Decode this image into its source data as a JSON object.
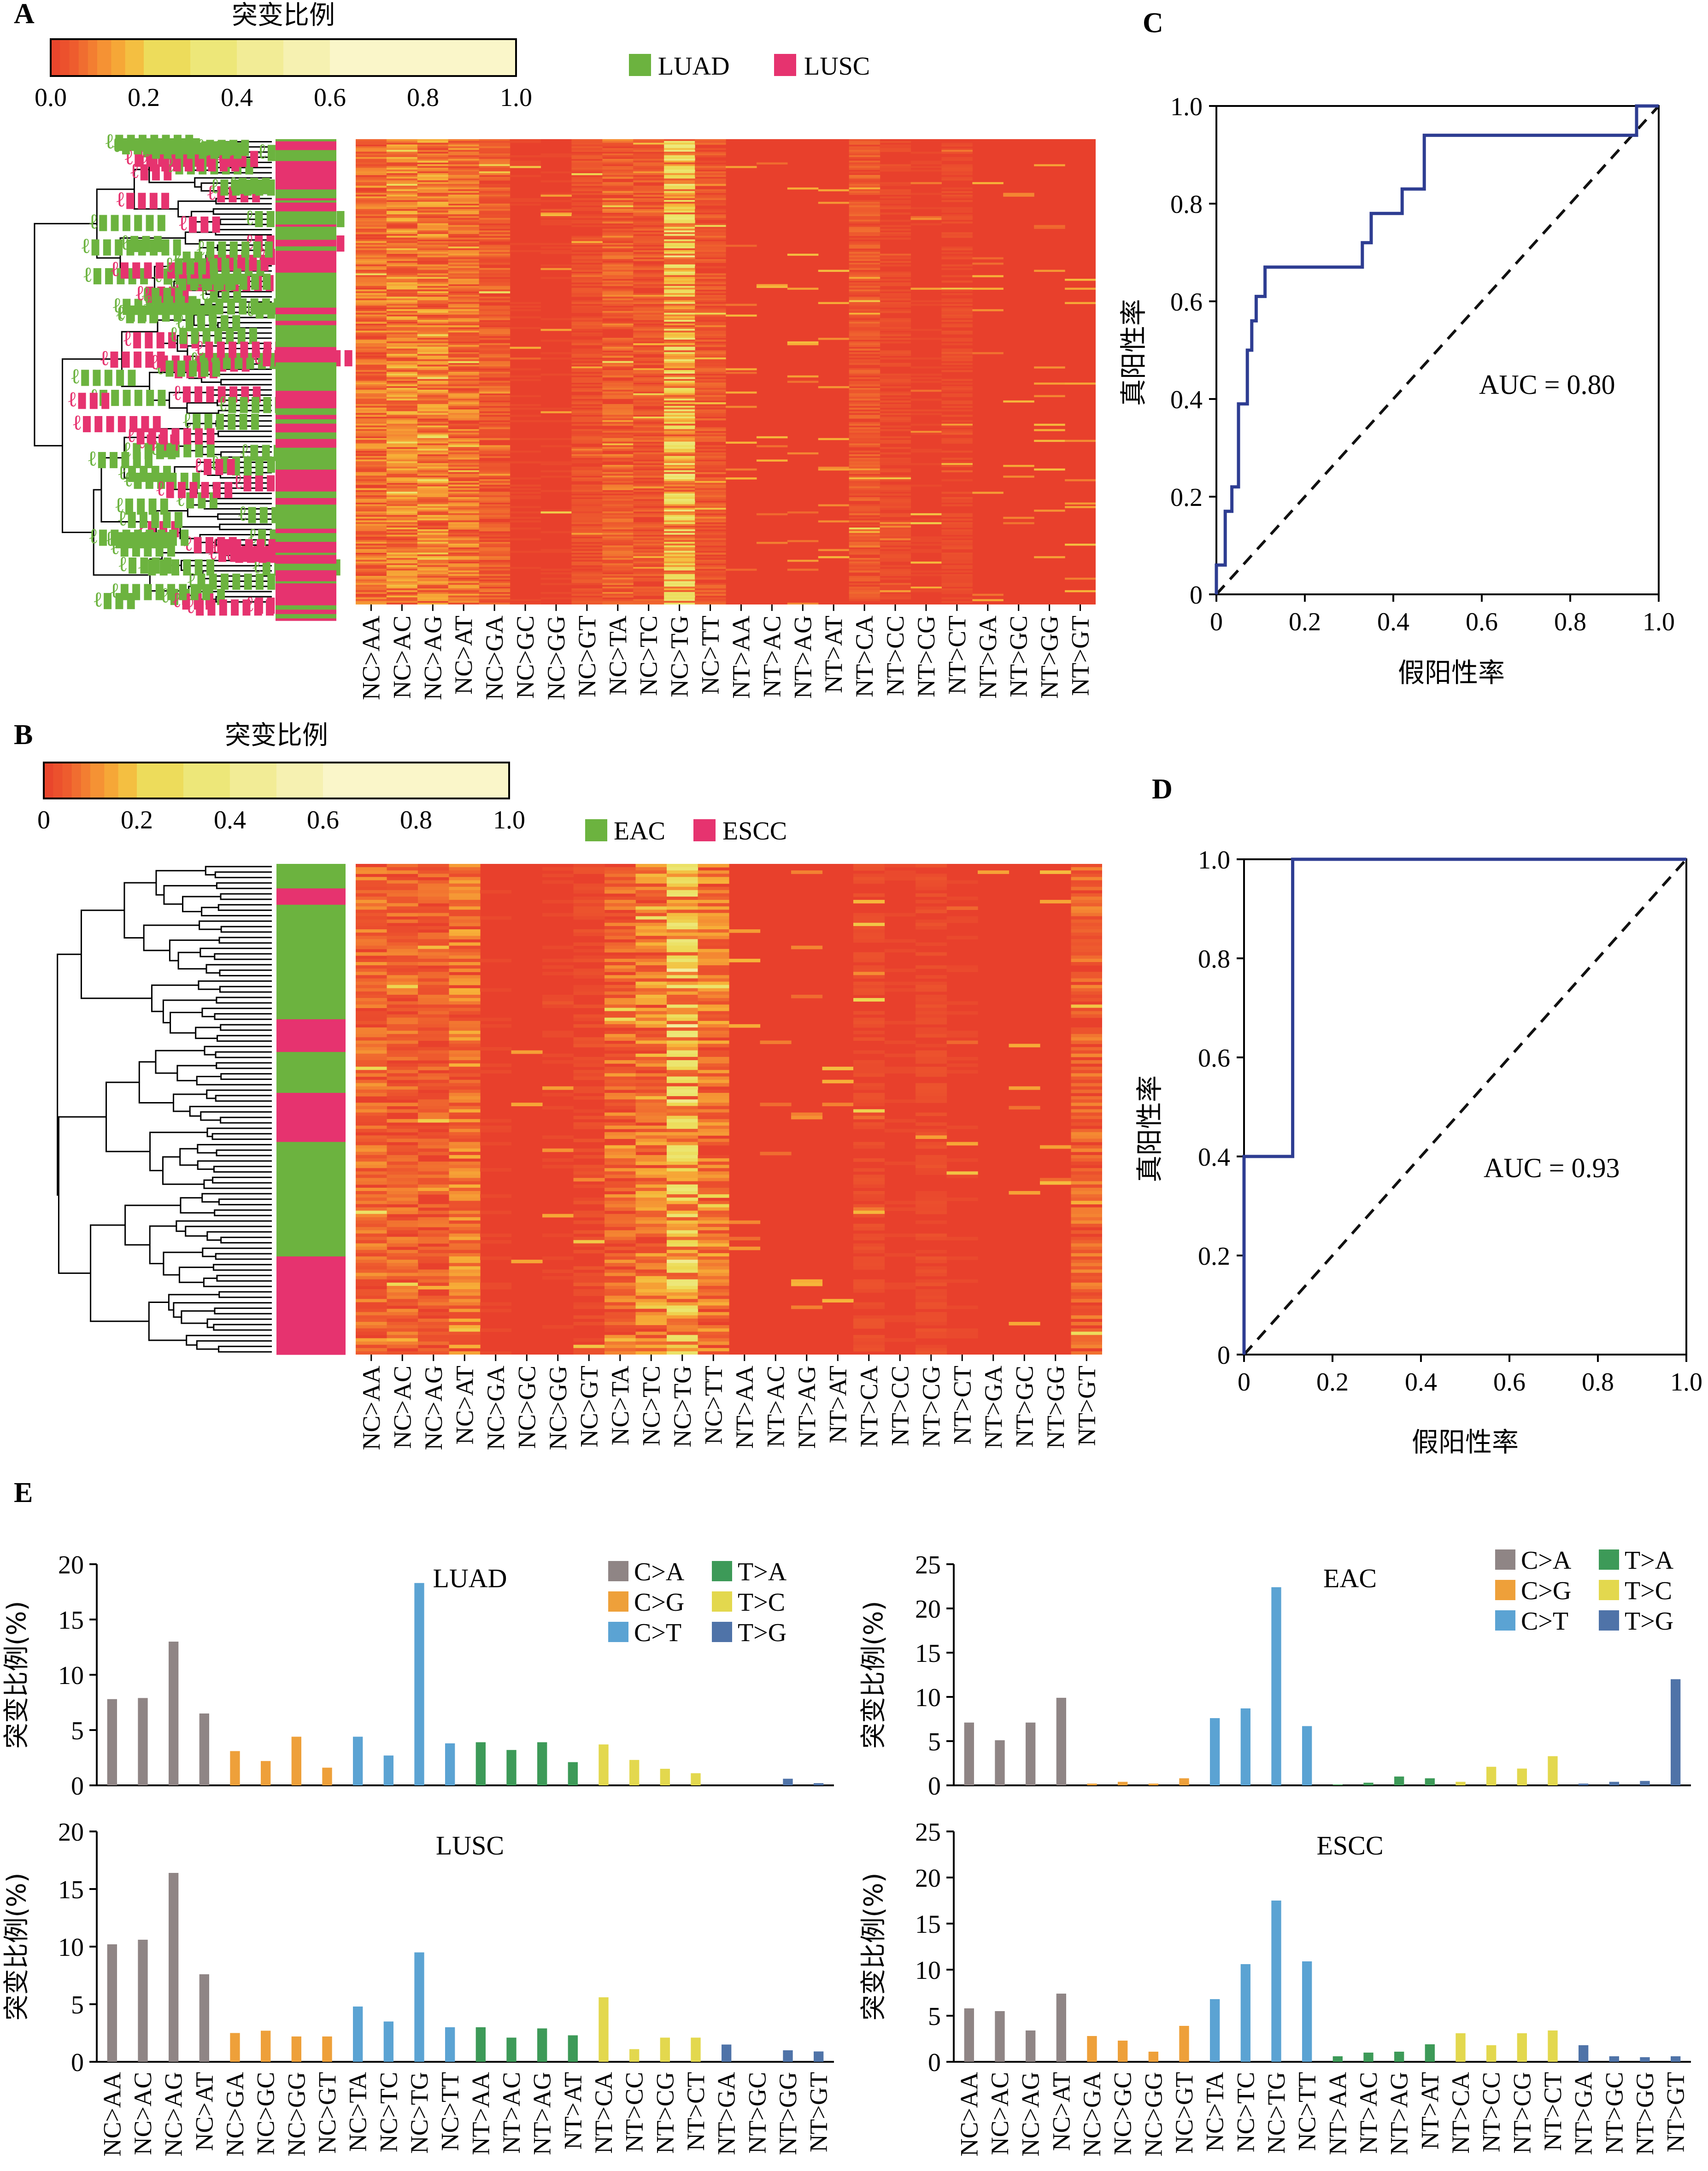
{
  "panels": {
    "A": {
      "letter": "A",
      "colorbar_title": "突变比例",
      "colorbar_ticks": [
        "0.0",
        "0.2",
        "0.4",
        "0.6",
        "0.8",
        "1.0"
      ],
      "legend": [
        {
          "label": "LUAD",
          "color": "#6cb33f"
        },
        {
          "label": "LUSC",
          "color": "#e6336f"
        }
      ],
      "heatmap_columns": [
        "NC>AA",
        "NC>AC",
        "NC>AG",
        "NC>AT",
        "NC>GA",
        "NC>GC",
        "NC>GG",
        "NC>GT",
        "NC>TA",
        "NC>TC",
        "NC>TG",
        "NC>TT",
        "NT>AA",
        "NT>AC",
        "NT>AG",
        "NT>AT",
        "NT>CA",
        "NT>CC",
        "NT>CG",
        "NT>CT",
        "NT>GA",
        "NT>GC",
        "NT>GG",
        "NT>GT"
      ]
    },
    "B": {
      "letter": "B",
      "colorbar_title": "突变比例",
      "colorbar_ticks": [
        "0",
        "0.2",
        "0.4",
        "0.6",
        "0.8",
        "1.0"
      ],
      "legend": [
        {
          "label": "EAC",
          "color": "#6cb33f"
        },
        {
          "label": "ESCC",
          "color": "#e6336f"
        }
      ],
      "heatmap_columns": [
        "NC>AA",
        "NC>AC",
        "NC>AG",
        "NC>AT",
        "NC>GA",
        "NC>GC",
        "NC>GG",
        "NC>GT",
        "NC>TA",
        "NC>TC",
        "NC>TG",
        "NC>TT",
        "NT>AA",
        "NT>AC",
        "NT>AG",
        "NT>AT",
        "NT>CA",
        "NT>CC",
        "NT>CG",
        "NT>CT",
        "NT>GA",
        "NT>GC",
        "NT>GG",
        "NT>GT"
      ]
    },
    "C": {
      "letter": "C",
      "auc_label": "AUC = 0.80",
      "xlabel": "假阳性率",
      "ylabel": "真阳性率"
    },
    "D": {
      "letter": "D",
      "auc_label": "AUC = 0.93",
      "xlabel": "假阳性率",
      "ylabel": "真阳性率"
    },
    "E": {
      "letter": "E",
      "ylabel": "突变比例(%)"
    }
  },
  "colors": {
    "C>A": "#8f8585",
    "C>G": "#eea03a",
    "C>T": "#5ba3d3",
    "T>A": "#3d9a58",
    "T>C": "#e3d84e",
    "T>G": "#4f73a8",
    "roc": "#2e3d92",
    "heat_low": "#e8402c",
    "heat_high": "#fbf7d2"
  },
  "chart_data": [
    {
      "type": "heatmap",
      "panel": "A",
      "x": [
        "NC>AA",
        "NC>AC",
        "NC>AG",
        "NC>AT",
        "NC>GA",
        "NC>GC",
        "NC>GG",
        "NC>GT",
        "NC>TA",
        "NC>TC",
        "NC>TG",
        "NC>TT",
        "NT>AA",
        "NT>AC",
        "NT>AG",
        "NT>AT",
        "NT>CA",
        "NT>CC",
        "NT>CG",
        "NT>CT",
        "NT>GA",
        "NT>GC",
        "NT>GG",
        "NT>GT"
      ],
      "groups": [
        "LUAD",
        "LUSC"
      ],
      "colorbar_range": [
        0,
        1.0
      ],
      "column_mean_fraction": [
        0.08,
        0.1,
        0.1,
        0.08,
        0.05,
        0.01,
        0.01,
        0.03,
        0.06,
        0.04,
        0.2,
        0.04,
        0.0,
        0.0,
        0.0,
        0.0,
        0.04,
        0.02,
        0.01,
        0.02,
        0.0,
        0.0,
        0.0,
        0.0
      ]
    },
    {
      "type": "heatmap",
      "panel": "B",
      "x": [
        "NC>AA",
        "NC>AC",
        "NC>AG",
        "NC>AT",
        "NC>GA",
        "NC>GC",
        "NC>GG",
        "NC>GT",
        "NC>TA",
        "NC>TC",
        "NC>TG",
        "NC>TT",
        "NT>AA",
        "NT>AC",
        "NT>AG",
        "NT>AT",
        "NT>CA",
        "NT>CC",
        "NT>CG",
        "NT>CT",
        "NT>GA",
        "NT>GC",
        "NT>GG",
        "NT>GT"
      ],
      "groups": [
        "EAC",
        "ESCC"
      ],
      "colorbar_range": [
        0,
        1.0
      ],
      "column_mean_fraction": [
        0.07,
        0.06,
        0.05,
        0.09,
        0.01,
        0.0,
        0.01,
        0.02,
        0.07,
        0.1,
        0.2,
        0.09,
        0.0,
        0.0,
        0.0,
        0.0,
        0.02,
        0.01,
        0.02,
        0.01,
        0.0,
        0.0,
        0.0,
        0.06
      ]
    },
    {
      "type": "line",
      "panel": "C",
      "auc": 0.8,
      "xlim": [
        0,
        1.0
      ],
      "ylim": [
        0,
        1.0
      ],
      "xticks": [
        "0",
        "0.2",
        "0.4",
        "0.6",
        "0.8",
        "1.0"
      ],
      "yticks": [
        "0",
        "0.2",
        "0.4",
        "0.6",
        "0.8",
        "1.0"
      ],
      "series": [
        {
          "points": [
            [
              0,
              0
            ],
            [
              0,
              0.06
            ],
            [
              0.02,
              0.06
            ],
            [
              0.02,
              0.17
            ],
            [
              0.035,
              0.17
            ],
            [
              0.035,
              0.22
            ],
            [
              0.05,
              0.22
            ],
            [
              0.05,
              0.39
            ],
            [
              0.07,
              0.39
            ],
            [
              0.07,
              0.5
            ],
            [
              0.08,
              0.5
            ],
            [
              0.08,
              0.56
            ],
            [
              0.09,
              0.56
            ],
            [
              0.09,
              0.61
            ],
            [
              0.11,
              0.61
            ],
            [
              0.11,
              0.67
            ],
            [
              0.33,
              0.67
            ],
            [
              0.33,
              0.72
            ],
            [
              0.35,
              0.72
            ],
            [
              0.35,
              0.78
            ],
            [
              0.42,
              0.78
            ],
            [
              0.42,
              0.83
            ],
            [
              0.47,
              0.83
            ],
            [
              0.47,
              0.94
            ],
            [
              0.95,
              0.94
            ],
            [
              0.95,
              1.0
            ],
            [
              1.0,
              1.0
            ]
          ]
        },
        {
          "points": [
            [
              0,
              0
            ],
            [
              1,
              1
            ]
          ]
        }
      ]
    },
    {
      "type": "line",
      "panel": "D",
      "auc": 0.93,
      "xlim": [
        0,
        1.0
      ],
      "ylim": [
        0,
        1.0
      ],
      "xticks": [
        "0",
        "0.2",
        "0.4",
        "0.6",
        "0.8",
        "1.0"
      ],
      "yticks": [
        "0",
        "0.2",
        "0.4",
        "0.6",
        "0.8",
        "1.0"
      ],
      "series": [
        {
          "points": [
            [
              0,
              0
            ],
            [
              0,
              0.4
            ],
            [
              0.11,
              0.4
            ],
            [
              0.11,
              1.0
            ],
            [
              1.0,
              1.0
            ]
          ]
        },
        {
          "points": [
            [
              0,
              0
            ],
            [
              1,
              1
            ]
          ]
        }
      ]
    },
    {
      "type": "bar",
      "panel": "E",
      "title": "LUAD",
      "categories": [
        "NC>AA",
        "NC>AC",
        "NC>AG",
        "NC>AT",
        "NC>GA",
        "NC>GC",
        "NC>GG",
        "NC>GT",
        "NC>TA",
        "NC>TC",
        "NC>TG",
        "NC>TT",
        "NT>AA",
        "NT>AC",
        "NT>AG",
        "NT>AT",
        "NT>CA",
        "NT>CC",
        "NT>CG",
        "NT>CT",
        "NT>GA",
        "NT>GC",
        "NT>GG",
        "NT>GT"
      ],
      "values": [
        7.8,
        7.9,
        13.0,
        6.5,
        3.1,
        2.2,
        4.4,
        1.6,
        4.4,
        2.7,
        18.3,
        3.8,
        3.9,
        3.2,
        3.9,
        2.1,
        3.7,
        2.3,
        1.5,
        1.1,
        0.0,
        0.0,
        0.6,
        0.2
      ],
      "ylim": [
        0,
        20
      ],
      "yticks": [
        "0",
        "5",
        "10",
        "15",
        "20"
      ],
      "ylabel": "突变比例(%)",
      "legend": [
        "C>A",
        "C>G",
        "C>T",
        "T>A",
        "T>C",
        "T>G"
      ]
    },
    {
      "type": "bar",
      "panel": "E",
      "title": "EAC",
      "categories": [
        "NC>AA",
        "NC>AC",
        "NC>AG",
        "NC>AT",
        "NC>GA",
        "NC>GC",
        "NC>GG",
        "NC>GT",
        "NC>TA",
        "NC>TC",
        "NC>TG",
        "NC>TT",
        "NT>AA",
        "NT>AC",
        "NT>AG",
        "NT>AT",
        "NT>CA",
        "NT>CC",
        "NT>CG",
        "NT>CT",
        "NT>GA",
        "NT>GC",
        "NT>GG",
        "NT>GT"
      ],
      "values": [
        7.1,
        5.1,
        7.1,
        9.9,
        0.2,
        0.4,
        0.2,
        0.8,
        7.6,
        8.7,
        22.4,
        6.7,
        0.1,
        0.3,
        1.0,
        0.8,
        0.4,
        2.1,
        1.9,
        3.3,
        0.2,
        0.4,
        0.5,
        12.0
      ],
      "ylim": [
        0,
        25
      ],
      "yticks": [
        "0",
        "5",
        "10",
        "15",
        "20",
        "25"
      ],
      "ylabel": "突变比例(%)",
      "legend": [
        "C>A",
        "C>G",
        "C>T",
        "T>A",
        "T>C",
        "T>G"
      ]
    },
    {
      "type": "bar",
      "panel": "E",
      "title": "LUSC",
      "categories": [
        "NC>AA",
        "NC>AC",
        "NC>AG",
        "NC>AT",
        "NC>GA",
        "NC>GC",
        "NC>GG",
        "NC>GT",
        "NC>TA",
        "NC>TC",
        "NC>TG",
        "NC>TT",
        "NT>AA",
        "NT>AC",
        "NT>AG",
        "NT>AT",
        "NT>CA",
        "NT>CC",
        "NT>CG",
        "NT>CT",
        "NT>GA",
        "NT>GC",
        "NT>GG",
        "NT>GT"
      ],
      "values": [
        10.2,
        10.6,
        16.4,
        7.6,
        2.5,
        2.7,
        2.2,
        2.2,
        4.8,
        3.5,
        9.5,
        3.0,
        3.0,
        2.1,
        2.9,
        2.3,
        5.6,
        1.1,
        2.1,
        2.1,
        1.5,
        0.0,
        1.0,
        0.9
      ],
      "ylim": [
        0,
        20
      ],
      "yticks": [
        "0",
        "5",
        "10",
        "15",
        "20"
      ],
      "ylabel": "突变比例(%)"
    },
    {
      "type": "bar",
      "panel": "E",
      "title": "ESCC",
      "categories": [
        "NC>AA",
        "NC>AC",
        "NC>AG",
        "NC>AT",
        "NC>GA",
        "NC>GC",
        "NC>GG",
        "NC>GT",
        "NC>TA",
        "NC>TC",
        "NC>TG",
        "NC>TT",
        "NT>AA",
        "NT>AC",
        "NT>AG",
        "NT>AT",
        "NT>CA",
        "NT>CC",
        "NT>CG",
        "NT>CT",
        "NT>GA",
        "NT>GC",
        "NT>GG",
        "NT>GT"
      ],
      "values": [
        5.8,
        5.5,
        3.4,
        7.4,
        2.8,
        2.3,
        1.1,
        3.9,
        6.8,
        10.6,
        17.5,
        10.9,
        0.6,
        1.0,
        1.1,
        1.9,
        3.1,
        1.8,
        3.1,
        3.4,
        1.8,
        0.6,
        0.5,
        0.6
      ],
      "ylim": [
        0,
        25
      ],
      "yticks": [
        "0",
        "5",
        "10",
        "15",
        "20",
        "25"
      ],
      "ylabel": "突变比例(%)"
    }
  ]
}
